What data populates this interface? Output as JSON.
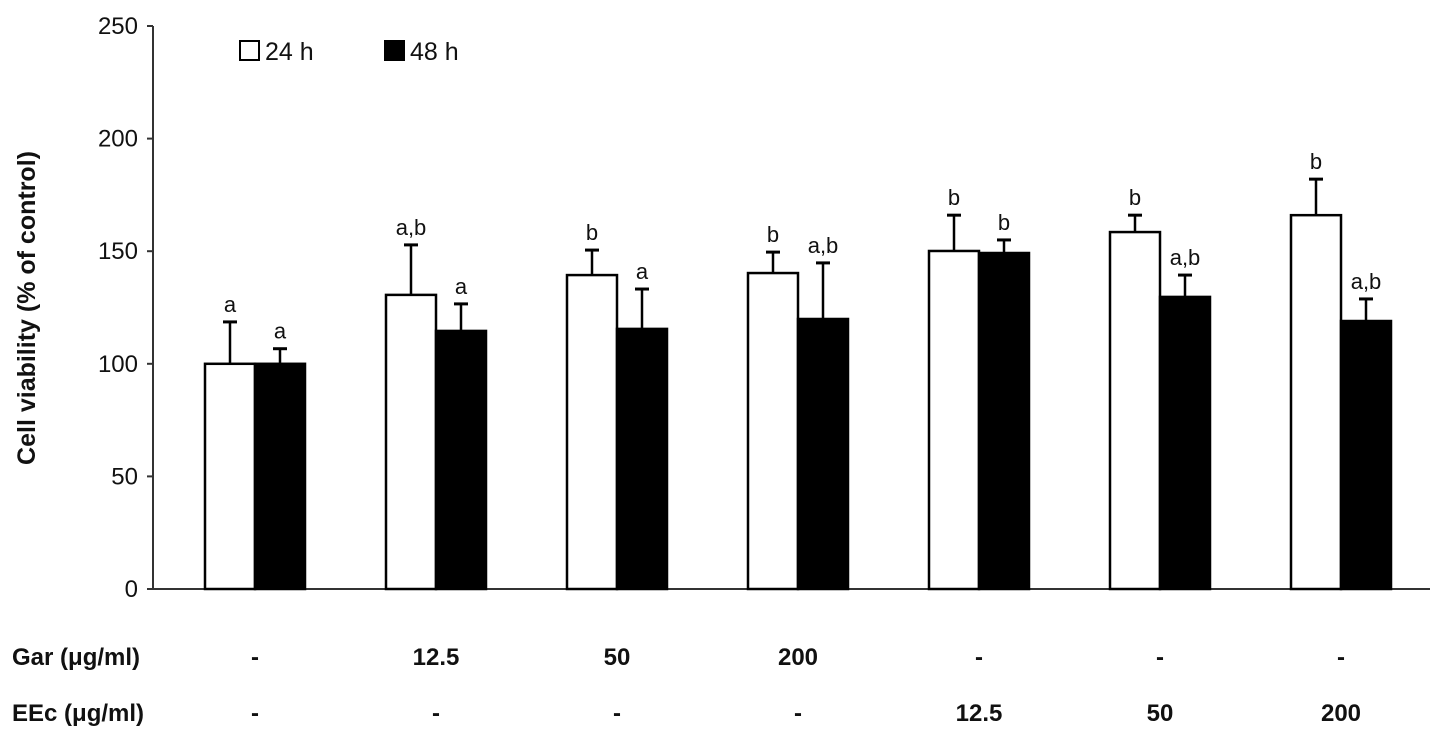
{
  "chart_data": {
    "type": "bar",
    "ylabel": "Cell viability (% of control)",
    "ylim": [
      0,
      250
    ],
    "yticks": [
      0,
      50,
      100,
      150,
      200,
      250
    ],
    "grid": false,
    "legend_position": "top-left",
    "row_labels": [
      "Gar (μg/ml)",
      "EEc (μg/ml)"
    ],
    "categories": [
      {
        "gar": "-",
        "eec": "-"
      },
      {
        "gar": "12.5",
        "eec": "-"
      },
      {
        "gar": "50",
        "eec": "-"
      },
      {
        "gar": "200",
        "eec": "-"
      },
      {
        "gar": "-",
        "eec": "12.5"
      },
      {
        "gar": "-",
        "eec": "50"
      },
      {
        "gar": "-",
        "eec": "200"
      }
    ],
    "series": [
      {
        "name": "24 h",
        "color": "#ffffff",
        "values": [
          100,
          130.6,
          139.4,
          140.3,
          150.1,
          158.5,
          166.0
        ],
        "errors": [
          18.6,
          22.2,
          11.1,
          9.3,
          15.9,
          7.5,
          16.0
        ],
        "labels": [
          "a",
          "a,b",
          "b",
          "b",
          "b",
          "b",
          "b"
        ]
      },
      {
        "name": "48 h",
        "color": "#000000",
        "values": [
          100,
          114.6,
          115.5,
          119.9,
          149.2,
          129.7,
          119.0
        ],
        "errors": [
          6.7,
          12.0,
          17.7,
          24.9,
          5.8,
          9.7,
          9.8
        ],
        "labels": [
          "a",
          "a",
          "a",
          "a,b",
          "b",
          "a,b",
          "a,b"
        ]
      }
    ]
  }
}
